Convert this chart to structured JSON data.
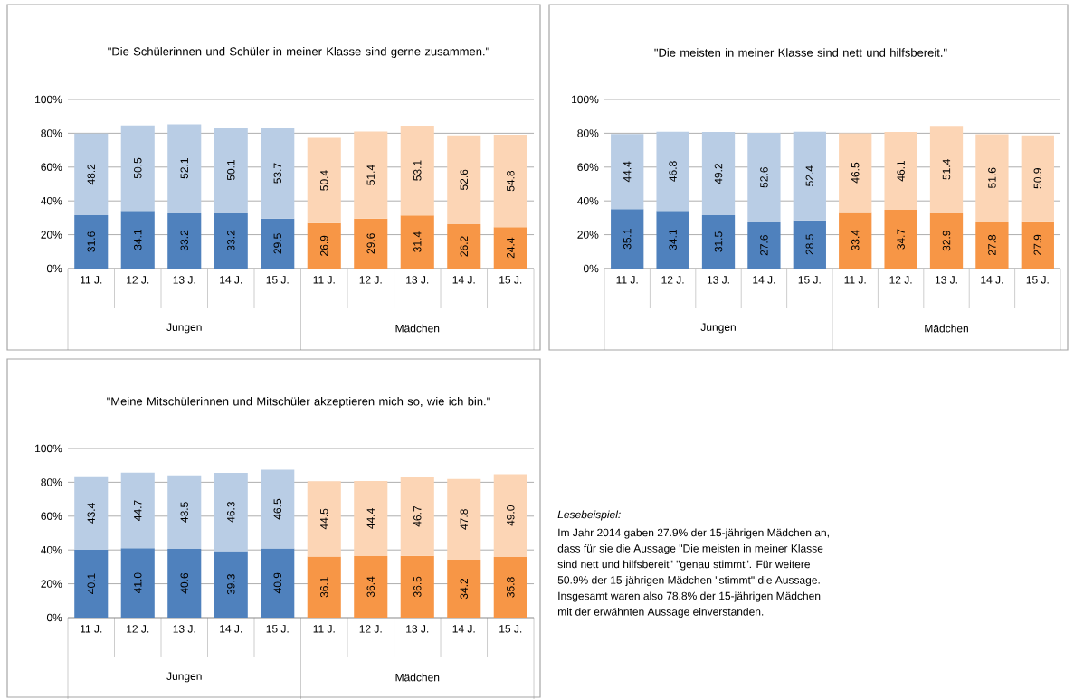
{
  "chart_data": [
    {
      "type": "bar",
      "title": "\"Die Schülerinnen und Schüler in meiner Klasse sind gerne zusammen.\"",
      "categories": [
        "11 J.",
        "12 J.",
        "13 J.",
        "14 J.",
        "15 J.",
        "11 J.",
        "12 J.",
        "13 J.",
        "14 J.",
        "15 J."
      ],
      "stacked": true,
      "ylim": [
        0,
        100
      ],
      "yticks": [
        {
          "value": 0,
          "label": "0%"
        },
        {
          "value": 20,
          "label": "20%"
        },
        {
          "value": 40,
          "label": "40%"
        },
        {
          "value": 60,
          "label": "60%"
        },
        {
          "value": 80,
          "label": "80%"
        },
        {
          "value": 100,
          "label": "100%"
        }
      ],
      "grid": "y",
      "annotations": [
        "Jungen",
        "Mädchen"
      ],
      "series": [
        {
          "colors": [
            "#4f81bd",
            "#4f81bd",
            "#4f81bd",
            "#4f81bd",
            "#4f81bd",
            "#f79646",
            "#f79646",
            "#f79646",
            "#f79646",
            "#f79646"
          ],
          "values": [
            31.6,
            34.1,
            33.2,
            33.2,
            29.5,
            26.9,
            29.6,
            31.4,
            26.2,
            24.4
          ],
          "value_labels": [
            "31.6",
            "34.1",
            "33.2",
            "33.2",
            "29.5",
            "26.9",
            "29.6",
            "31.4",
            "26.2",
            "24.4"
          ]
        },
        {
          "colors": [
            "#b9cde5",
            "#b9cde5",
            "#b9cde5",
            "#b9cde5",
            "#b9cde5",
            "#fcd5b5",
            "#fcd5b5",
            "#fcd5b5",
            "#fcd5b5",
            "#fcd5b5"
          ],
          "values": [
            48.2,
            50.5,
            52.1,
            50.1,
            53.7,
            50.4,
            51.4,
            53.1,
            52.6,
            54.8
          ],
          "value_labels": [
            "48.2",
            "50.5",
            "52.1",
            "50.1",
            "53.7",
            "50.4",
            "51.4",
            "53.1",
            "52.6",
            "54.8"
          ]
        }
      ]
    },
    {
      "type": "bar",
      "title": "\"Die meisten in meiner Klasse sind nett und hilfsbereit.\"",
      "categories": [
        "11 J.",
        "12 J.",
        "13 J.",
        "14 J.",
        "15 J.",
        "11 J.",
        "12 J.",
        "13 J.",
        "14 J.",
        "15 J."
      ],
      "stacked": true,
      "ylim": [
        0,
        100
      ],
      "yticks": [
        {
          "value": 0,
          "label": "0%"
        },
        {
          "value": 20,
          "label": "20%"
        },
        {
          "value": 40,
          "label": "40%"
        },
        {
          "value": 60,
          "label": "60%"
        },
        {
          "value": 80,
          "label": "80%"
        },
        {
          "value": 100,
          "label": "100%"
        }
      ],
      "grid": "y",
      "annotations": [
        "Jungen",
        "Mädchen"
      ],
      "series": [
        {
          "colors": [
            "#4f81bd",
            "#4f81bd",
            "#4f81bd",
            "#4f81bd",
            "#4f81bd",
            "#f79646",
            "#f79646",
            "#f79646",
            "#f79646",
            "#f79646"
          ],
          "values": [
            35.1,
            34.1,
            31.5,
            27.6,
            28.5,
            33.4,
            34.7,
            32.9,
            27.8,
            27.9
          ],
          "value_labels": [
            "35.1",
            "34.1",
            "31.5",
            "27.6",
            "28.5",
            "33.4",
            "34.7",
            "32.9",
            "27.8",
            "27.9"
          ]
        },
        {
          "colors": [
            "#b9cde5",
            "#b9cde5",
            "#b9cde5",
            "#b9cde5",
            "#b9cde5",
            "#fcd5b5",
            "#fcd5b5",
            "#fcd5b5",
            "#fcd5b5",
            "#fcd5b5"
          ],
          "values": [
            44.4,
            46.8,
            49.2,
            52.6,
            52.4,
            46.5,
            46.1,
            51.4,
            51.6,
            50.9
          ],
          "value_labels": [
            "44.4",
            "46.8",
            "49.2",
            "52.6",
            "52.4",
            "46.5",
            "46.1",
            "51.4",
            "51.6",
            "50.9"
          ]
        }
      ]
    },
    {
      "type": "bar",
      "title": "\"Meine Mitschülerinnen und Mitschüler akzeptieren mich so, wie ich bin.\"",
      "categories": [
        "11 J.",
        "12 J.",
        "13 J.",
        "14 J.",
        "15 J.",
        "11 J.",
        "12 J.",
        "13 J.",
        "14 J.",
        "15 J."
      ],
      "stacked": true,
      "ylim": [
        0,
        100
      ],
      "yticks": [
        {
          "value": 0,
          "label": "0%"
        },
        {
          "value": 20,
          "label": "20%"
        },
        {
          "value": 40,
          "label": "40%"
        },
        {
          "value": 60,
          "label": "60%"
        },
        {
          "value": 80,
          "label": "80%"
        },
        {
          "value": 100,
          "label": "100%"
        }
      ],
      "grid": "y",
      "annotations": [
        "Jungen",
        "Mädchen"
      ],
      "series": [
        {
          "colors": [
            "#4f81bd",
            "#4f81bd",
            "#4f81bd",
            "#4f81bd",
            "#4f81bd",
            "#f79646",
            "#f79646",
            "#f79646",
            "#f79646",
            "#f79646"
          ],
          "values": [
            40.1,
            41.0,
            40.6,
            39.3,
            40.9,
            36.1,
            36.4,
            36.5,
            34.2,
            35.8
          ],
          "value_labels": [
            "40.1",
            "41.0",
            "40.6",
            "39.3",
            "40.9",
            "36.1",
            "36.4",
            "36.5",
            "34.2",
            "35.8"
          ]
        },
        {
          "colors": [
            "#b9cde5",
            "#b9cde5",
            "#b9cde5",
            "#b9cde5",
            "#b9cde5",
            "#fcd5b5",
            "#fcd5b5",
            "#fcd5b5",
            "#fcd5b5",
            "#fcd5b5"
          ],
          "values": [
            43.4,
            44.7,
            43.5,
            46.3,
            46.5,
            44.5,
            44.4,
            46.7,
            47.8,
            49.0
          ],
          "value_labels": [
            "43.4",
            "44.7",
            "43.5",
            "46.3",
            "46.5",
            "44.5",
            "44.4",
            "46.7",
            "47.8",
            "49.0"
          ]
        }
      ]
    },
    {
      "type": "other",
      "title": "Lesebeispiel:",
      "annotations": [
        "Im Jahr 2014 gaben 27.9% der 15-jährigen Mädchen an,",
        "dass für sie die Aussage \"Die meisten in meiner Klasse",
        "sind nett und hilfsbereit\" \"genau stimmt\". Für weitere",
        "50.9% der 15-jährigen Mädchen \"stimmt\" die Aussage.",
        "Insgesamt waren also 78.8% der 15-jährigen Mädchen",
        "mit der erwähnten Aussage einverstanden."
      ]
    }
  ]
}
